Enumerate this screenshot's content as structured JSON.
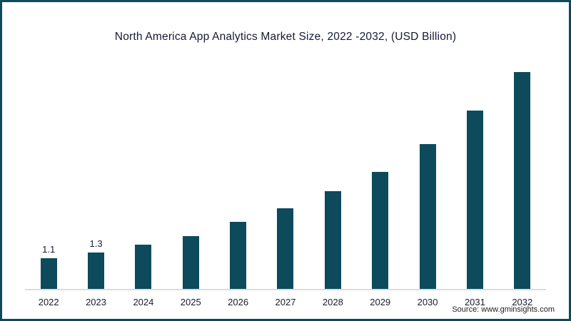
{
  "frame": {
    "border_color": "#0d4a5c",
    "background": "#ffffff"
  },
  "chart_data": {
    "type": "bar",
    "title": "North America App Analytics Market Size, 2022 -2032, (USD Billion)",
    "categories": [
      "2022",
      "2023",
      "2024",
      "2025",
      "2026",
      "2027",
      "2028",
      "2029",
      "2030",
      "2031",
      "2032"
    ],
    "values": [
      1.1,
      1.3,
      1.6,
      1.9,
      2.4,
      2.9,
      3.5,
      4.2,
      5.2,
      6.4,
      7.8
    ],
    "data_labels": [
      "1.1",
      "1.3",
      "",
      "",
      "",
      "",
      "",
      "",
      "",
      "",
      ""
    ],
    "bar_color": "#0d4a5c",
    "xlabel": "",
    "ylabel": "",
    "ylim": [
      0,
      8
    ],
    "grid": false,
    "legend": false,
    "axis_line_color": "#dcdcdc"
  },
  "source": {
    "text": "Source: www.gminsights.com"
  }
}
